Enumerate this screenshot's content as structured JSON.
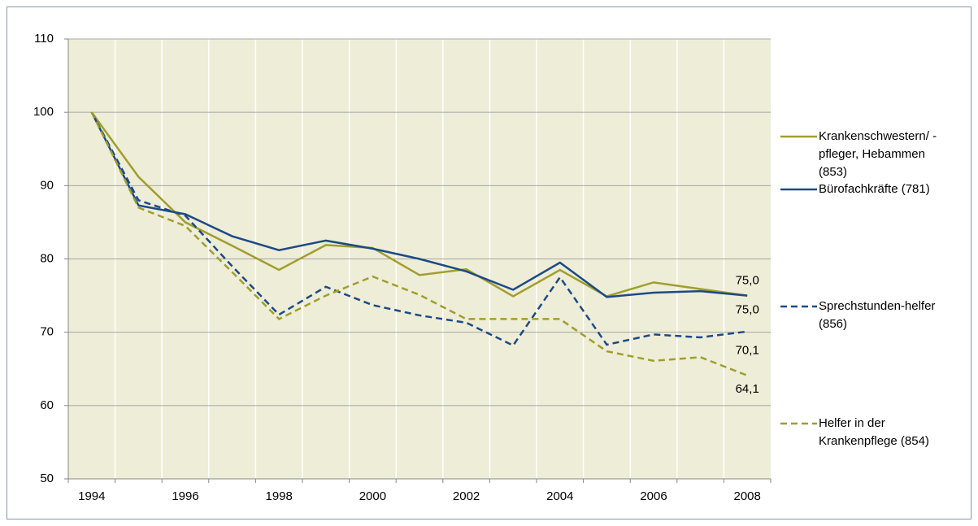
{
  "chart_data": {
    "type": "line",
    "categories": [
      "1994",
      null,
      "1996",
      null,
      "1998",
      null,
      "2000",
      null,
      "2002",
      null,
      "2004",
      null,
      "2006",
      null,
      "2008"
    ],
    "ylim": [
      50,
      110
    ],
    "yticks": [
      50,
      60,
      70,
      80,
      90,
      100,
      110
    ],
    "grid": true,
    "legend": "right",
    "series": [
      {
        "name": "Krankenschwestern/ -pfleger, Hebammen (853)",
        "color": "#a09e2e",
        "dash": false,
        "values": [
          100,
          91.2,
          85.0,
          81.8,
          78.5,
          81.9,
          81.5,
          77.8,
          78.6,
          74.9,
          78.5,
          74.9,
          76.8,
          75.9,
          75.0
        ],
        "value_labels": [
          null,
          null,
          null,
          null,
          null,
          null,
          null,
          null,
          null,
          null,
          null,
          null,
          null,
          null,
          "75,0"
        ]
      },
      {
        "name": "Bürofachkräfte (781)",
        "color": "#1c4a87",
        "dash": false,
        "values": [
          100,
          87.3,
          86.1,
          83.1,
          81.2,
          82.5,
          81.4,
          80.0,
          78.3,
          75.8,
          79.5,
          74.8,
          75.4,
          75.6,
          75.0
        ],
        "value_labels": [
          null,
          null,
          null,
          null,
          null,
          null,
          null,
          null,
          null,
          null,
          null,
          null,
          null,
          null,
          "75,0"
        ]
      },
      {
        "name": "Sprechstunden-helfer (856)",
        "color": "#1c4a87",
        "dash": true,
        "values": [
          100,
          88.0,
          85.9,
          79.0,
          72.4,
          76.2,
          73.7,
          72.3,
          71.3,
          68.2,
          77.5,
          68.3,
          69.7,
          69.3,
          70.1
        ],
        "value_labels": [
          null,
          null,
          null,
          null,
          null,
          null,
          null,
          null,
          null,
          null,
          null,
          null,
          null,
          null,
          "70,1"
        ]
      },
      {
        "name": "Helfer in der Krankenpflege (854)",
        "color": "#a09e2e",
        "dash": true,
        "values": [
          100,
          87.0,
          84.5,
          78.2,
          71.8,
          75.0,
          77.6,
          75.1,
          71.8,
          71.8,
          71.8,
          67.4,
          66.1,
          66.6,
          64.1
        ],
        "value_labels": [
          null,
          null,
          null,
          null,
          null,
          null,
          null,
          null,
          null,
          null,
          null,
          null,
          null,
          null,
          "64,1"
        ]
      }
    ]
  }
}
